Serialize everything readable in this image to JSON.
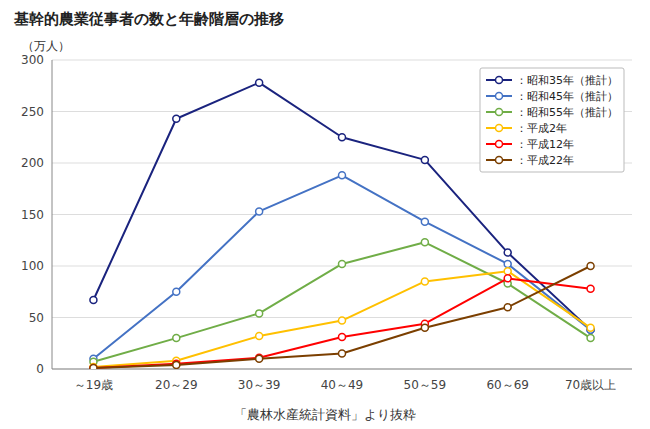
{
  "chart_data": {
    "type": "line",
    "title": "基幹的農業従事者の数と年齢階層の推移",
    "x_label": "「農林水産統計資料」より抜粋",
    "y_label": "（万人）",
    "categories": [
      "～19歳",
      "20～29",
      "30～39",
      "40～49",
      "50～59",
      "60～69",
      "70歳以上"
    ],
    "series": [
      {
        "name": "：昭和35年（推計）",
        "color": "#1a237e",
        "marker": "circle",
        "values": [
          67,
          243,
          278,
          225,
          203,
          113,
          38
        ]
      },
      {
        "name": "：昭和45年（推計）",
        "color": "#4472c4",
        "marker": "circle",
        "values": [
          10,
          75,
          153,
          188,
          143,
          102,
          38
        ]
      },
      {
        "name": "：昭和55年（推計）",
        "color": "#70ad47",
        "marker": "circle",
        "values": [
          7,
          30,
          54,
          102,
          123,
          83,
          30
        ]
      },
      {
        "name": "：平成2年",
        "color": "#ffc000",
        "marker": "circle",
        "values": [
          2,
          8,
          32,
          47,
          85,
          95,
          40
        ]
      },
      {
        "name": "：平成12年",
        "color": "#ff0000",
        "marker": "circle",
        "values": [
          1,
          5,
          11,
          31,
          44,
          88,
          78
        ]
      },
      {
        "name": "：平成22年",
        "color": "#7b3f00",
        "marker": "circle",
        "values": [
          1,
          4,
          10,
          15,
          40,
          60,
          100
        ]
      }
    ],
    "ylim": [
      0,
      300
    ],
    "yticks": [
      0,
      50,
      100,
      150,
      200,
      250,
      300
    ],
    "grid": true,
    "legend": "upper right"
  }
}
